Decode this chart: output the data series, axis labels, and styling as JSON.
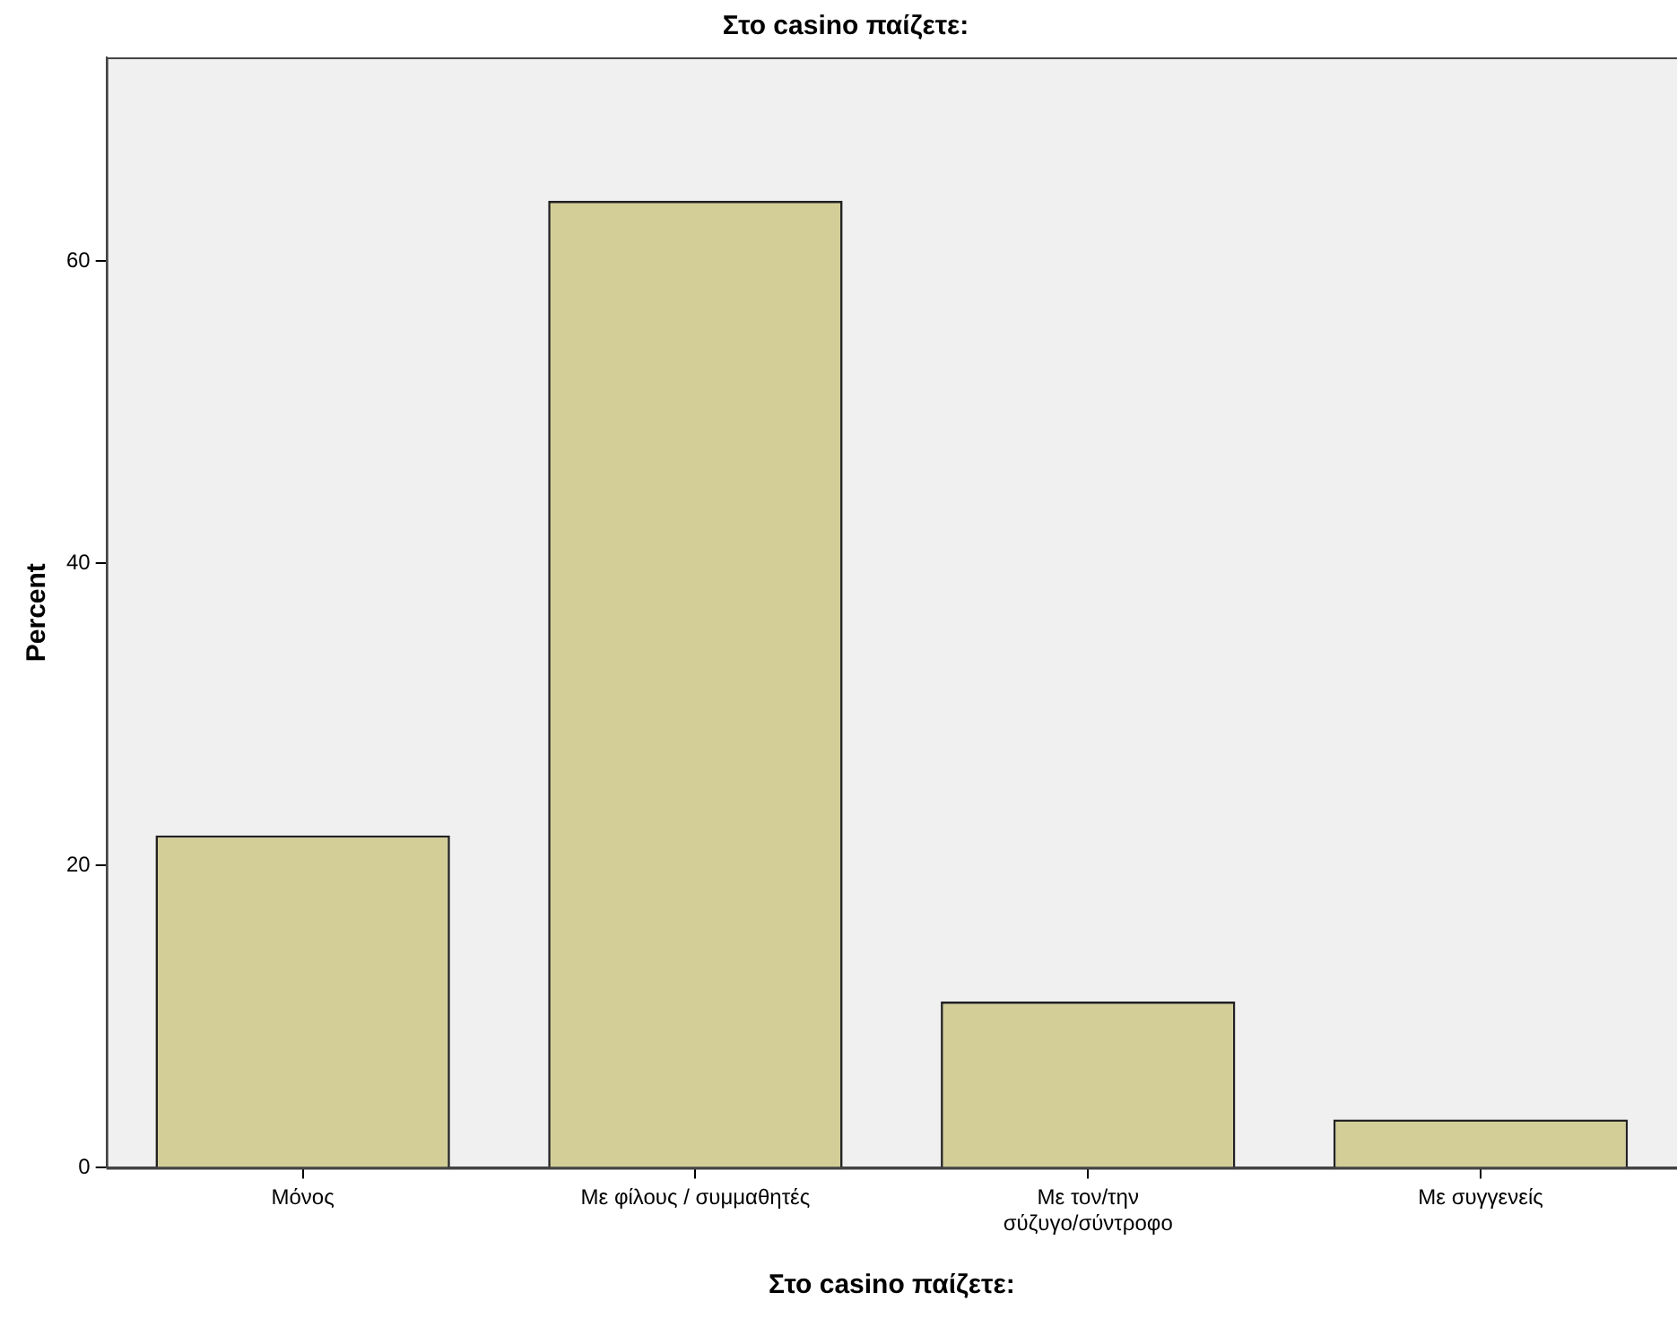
{
  "chart_data": {
    "type": "bar",
    "title": "Στο casino παίζετε:",
    "xlabel": "Στο casino παίζετε:",
    "ylabel": "Percent",
    "categories": [
      "Μόνος",
      "Με φίλους / συμμαθητές",
      "Με τον/την\nσύζυγο/σύντροφο",
      "Με συγγενείς"
    ],
    "values": [
      22,
      64,
      11,
      3.2
    ],
    "color": "#d3ce97",
    "ylim": [
      0,
      73.5
    ],
    "yticks": [
      0,
      20,
      40,
      60
    ],
    "grid": false,
    "legend": false
  }
}
